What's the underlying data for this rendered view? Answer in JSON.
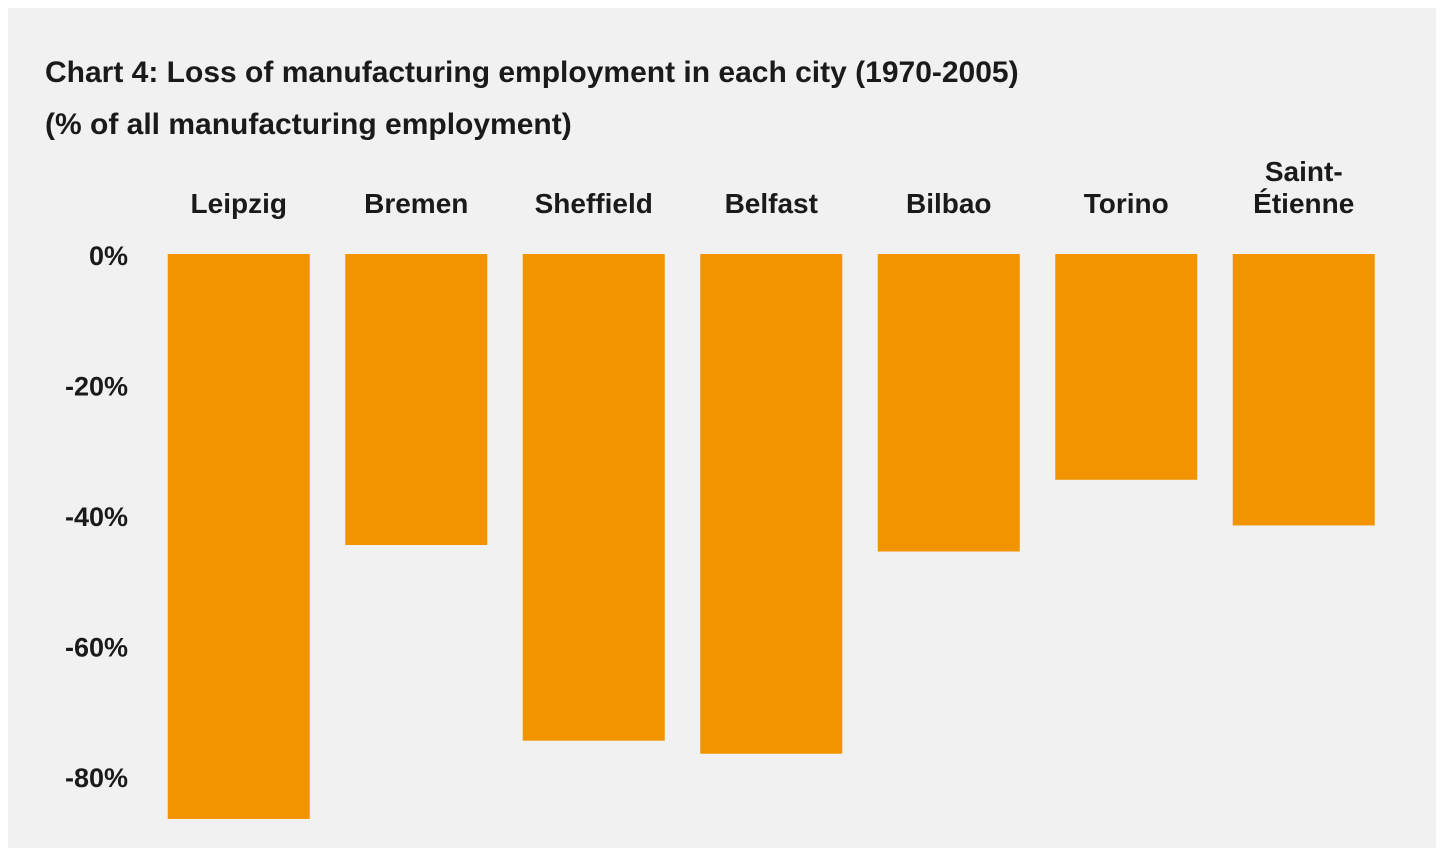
{
  "chart_data": {
    "type": "bar",
    "title": "Chart 4: Loss of manufacturing employment in each city (1970-2005)",
    "subtitle": "(% of all manufacturing employment)",
    "categories": [
      "Leipzig",
      "Bremen",
      "Sheffield",
      "Belfast",
      "Bilbao",
      "Torino",
      "Saint-Étienne"
    ],
    "values": [
      -86,
      -44,
      -74,
      -76,
      -45,
      -34,
      -41
    ],
    "color": "#f29400",
    "ylim": [
      -88,
      0
    ],
    "yticks": [
      {
        "value": 0,
        "label": "0%"
      },
      {
        "value": -20,
        "label": "-20%"
      },
      {
        "value": -40,
        "label": "-40%"
      },
      {
        "value": -60,
        "label": "-60%"
      },
      {
        "value": -80,
        "label": "-80%"
      }
    ],
    "grid": false
  }
}
